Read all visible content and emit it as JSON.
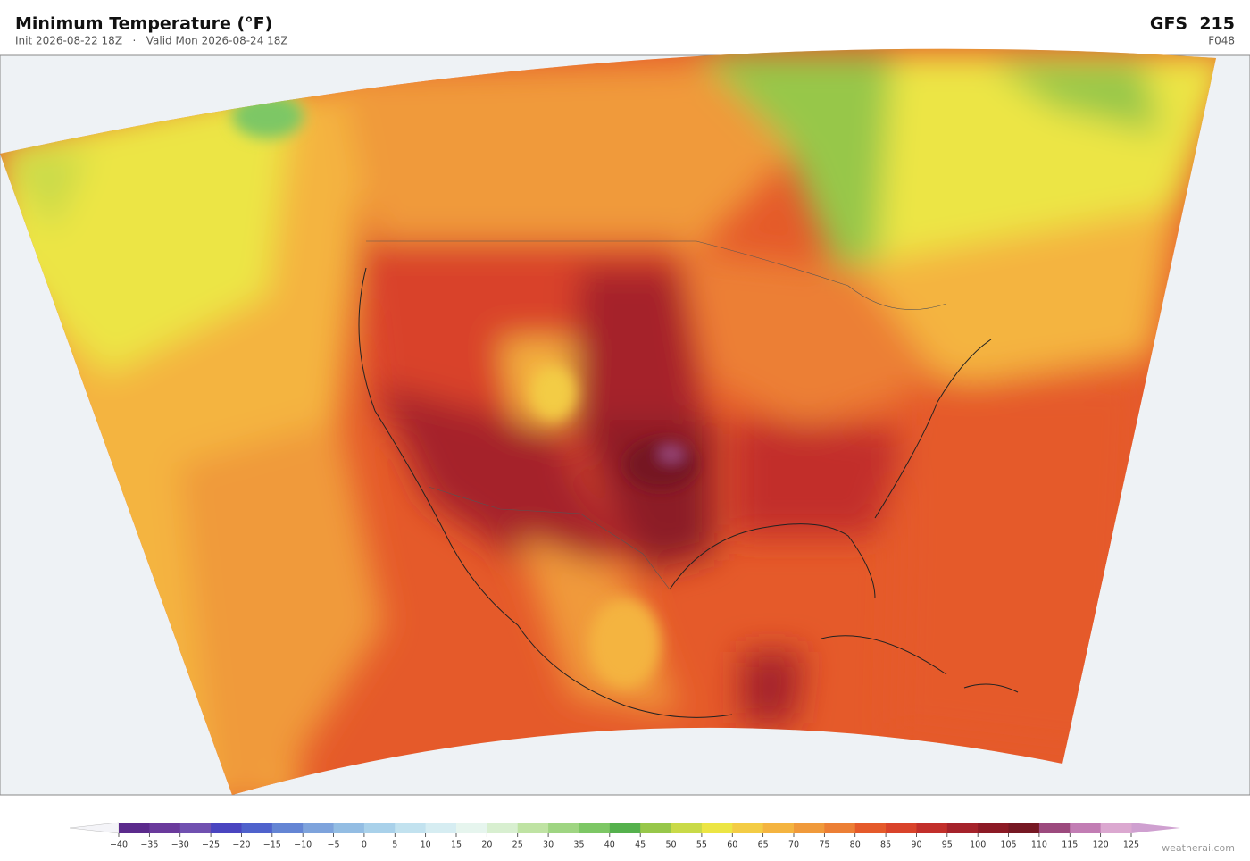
{
  "header": {
    "title": "Minimum Temperature  (°F)",
    "subtitle": "Init 2026-08-22 18Z   ·   Valid Mon 2026-08-24 18Z",
    "model": "GFS  215",
    "forecast_hour": "F048"
  },
  "legend": {
    "ticks": [
      {
        "value": -40,
        "label": "−40"
      },
      {
        "value": -35,
        "label": "−35"
      },
      {
        "value": -30,
        "label": "−30"
      },
      {
        "value": -25,
        "label": "−25"
      },
      {
        "value": -20,
        "label": "−20"
      },
      {
        "value": -15,
        "label": "−15"
      },
      {
        "value": -10,
        "label": "−10"
      },
      {
        "value": -5,
        "label": "−5"
      },
      0,
      5,
      10,
      15,
      20,
      25,
      30,
      35,
      40,
      45,
      50,
      55,
      60,
      65,
      70,
      75,
      80,
      85,
      90,
      95,
      100,
      105,
      110,
      115,
      120,
      125
    ],
    "colors": [
      "#5b2a8c",
      "#6a3a9c",
      "#7050b0",
      "#4a45c0",
      "#4f62cc",
      "#6485d4",
      "#7ea3dc",
      "#93bde3",
      "#a9d1ea",
      "#c2e2ef",
      "#d6edf2",
      "#e6f5ee",
      "#d8efd0",
      "#bfe3a3",
      "#9fd582",
      "#7dc765",
      "#55b14d",
      "#97c74a",
      "#c9da48",
      "#ece544",
      "#f3cc45",
      "#f4b440",
      "#f09a3b",
      "#ec7f35",
      "#e55a2a",
      "#d9432a",
      "#c22f2a",
      "#a5222a",
      "#8c1a25",
      "#761823",
      "#9c4a7e",
      "#c27db4",
      "#dba8d0"
    ],
    "under_color": "#f4f4f8",
    "over_color": "#cfa0d0"
  },
  "footer": {
    "credit": "weatherai.com"
  }
}
